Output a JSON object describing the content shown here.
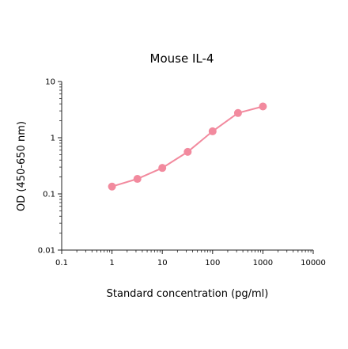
{
  "chart_data": {
    "type": "line",
    "title": "Mouse IL-4",
    "xlabel": "Standard concentration (pg/ml)",
    "ylabel": "OD (450-650 nm)",
    "x_scale": "log",
    "y_scale": "log",
    "xlim": [
      0.1,
      10000
    ],
    "ylim": [
      0.01,
      10
    ],
    "x_ticks": [
      {
        "value": 0.1,
        "label": "0.1"
      },
      {
        "value": 1,
        "label": "1"
      },
      {
        "value": 10,
        "label": "10"
      },
      {
        "value": 100,
        "label": "100"
      },
      {
        "value": 1000,
        "label": "1000"
      },
      {
        "value": 10000,
        "label": "10000"
      }
    ],
    "y_ticks": [
      {
        "value": 0.01,
        "label": "0.01"
      },
      {
        "value": 0.1,
        "label": "0.1"
      },
      {
        "value": 1,
        "label": "1"
      },
      {
        "value": 10,
        "label": "10"
      }
    ],
    "grid": false,
    "series": [
      {
        "color": "#f28a9e",
        "points": [
          {
            "x": 1,
            "y": 0.135
          },
          {
            "x": 3.2,
            "y": 0.185
          },
          {
            "x": 10,
            "y": 0.29
          },
          {
            "x": 32,
            "y": 0.56
          },
          {
            "x": 100,
            "y": 1.3
          },
          {
            "x": 320,
            "y": 2.75
          },
          {
            "x": 1000,
            "y": 3.6
          }
        ]
      }
    ]
  }
}
